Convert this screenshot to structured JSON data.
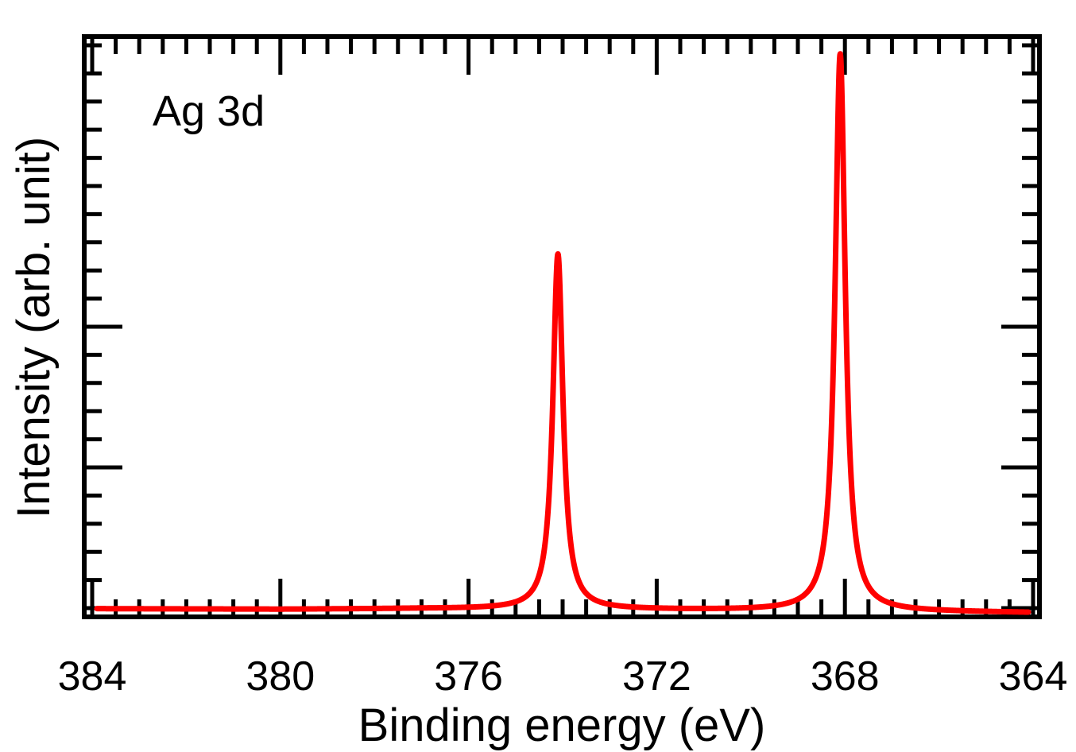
{
  "chart_data": {
    "type": "line",
    "annotation": "Ag 3d",
    "xlabel": "Binding energy (eV)",
    "ylabel": "Intensity (arb. unit)",
    "x_reversed": true,
    "xlim": [
      384,
      364
    ],
    "ylim": [
      0,
      100
    ],
    "x_major_ticks": [
      384,
      380,
      376,
      372,
      368,
      364
    ],
    "x_tick_labels": [
      "384",
      "380",
      "376",
      "372",
      "368",
      "364"
    ],
    "x_minor_step": 0.5,
    "y_major_ticks": [
      1.5,
      26,
      50,
      75,
      97
    ],
    "y_minor_step": 4.85,
    "y_tick_labels": false,
    "grid": false,
    "legend": "none",
    "color": "#ff0000",
    "series": [
      {
        "peaks": [
          {
            "center": 374.1,
            "height": 62.5,
            "hwhm": 0.13
          },
          {
            "center": 368.1,
            "height": 97.0,
            "hwhm": 0.13
          }
        ],
        "baseline": [
          [
            383.9,
            1.4
          ],
          [
            380,
            1.3
          ],
          [
            377,
            1.4
          ],
          [
            372,
            1.2
          ],
          [
            368,
            1.0
          ],
          [
            364,
            0.7
          ]
        ]
      }
    ]
  }
}
